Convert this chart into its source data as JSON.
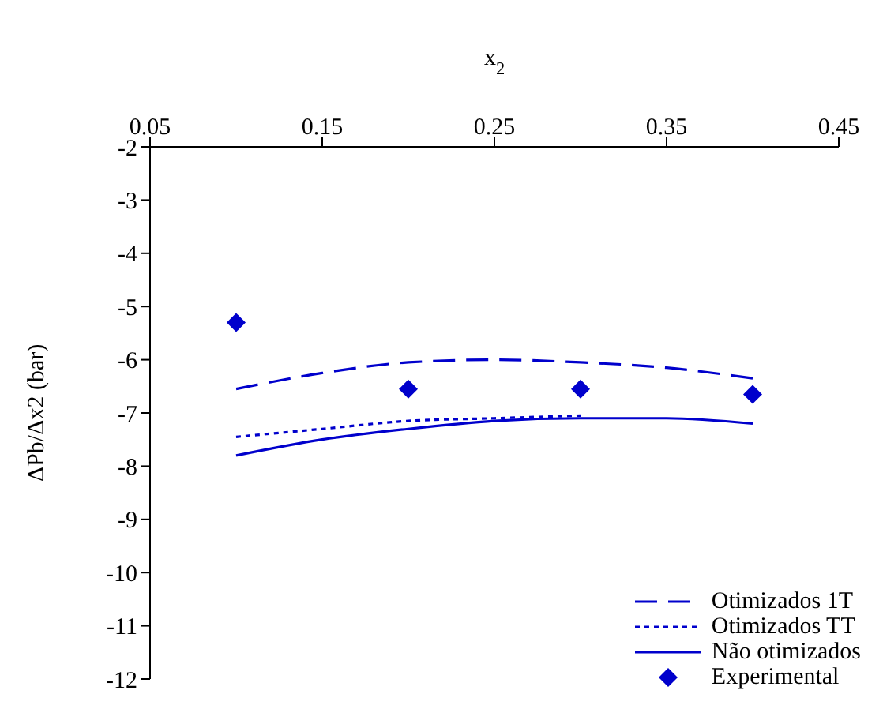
{
  "chart_data": {
    "type": "line",
    "xlabel": "x$_{2}$",
    "ylabel": "ΔPb/Δx2 (bar)",
    "xlim": [
      0.05,
      0.45
    ],
    "xticks": [
      0.05,
      0.15,
      0.25,
      0.35,
      0.45
    ],
    "ylim": [
      -12,
      -2
    ],
    "yticks": [
      -12,
      -11,
      -10,
      -9,
      -8,
      -7,
      -6,
      -5,
      -4,
      -3,
      -2
    ],
    "grid": false,
    "legend": "bottom right",
    "marker": "none",
    "series": [
      {
        "name": "Otimizados 1T",
        "color": "#0000cc",
        "line_style": "dashed",
        "x": [
          0.1,
          0.15,
          0.2,
          0.25,
          0.3,
          0.35,
          0.4
        ],
        "values": [
          -6.55,
          -6.25,
          -6.05,
          -6.0,
          -6.05,
          -6.15,
          -6.35
        ]
      },
      {
        "name": "Otimizados TT",
        "color": "#0000cc",
        "line_style": "dotted",
        "x": [
          0.1,
          0.15,
          0.2,
          0.25,
          0.3
        ],
        "values": [
          -7.45,
          -7.3,
          -7.15,
          -7.1,
          -7.05
        ]
      },
      {
        "name": "Não otimizados",
        "color": "#0000cc",
        "line_style": "solid",
        "x": [
          0.1,
          0.15,
          0.2,
          0.25,
          0.3,
          0.35,
          0.4
        ],
        "values": [
          -7.8,
          -7.5,
          -7.3,
          -7.15,
          -7.1,
          -7.1,
          -7.2
        ]
      },
      {
        "name": "Experimental",
        "type": "scatter",
        "marker": "diamond",
        "color": "#0000cc",
        "x": [
          0.1,
          0.2,
          0.3,
          0.4
        ],
        "values": [
          -5.3,
          -6.55,
          -6.55,
          -6.65
        ]
      }
    ]
  }
}
